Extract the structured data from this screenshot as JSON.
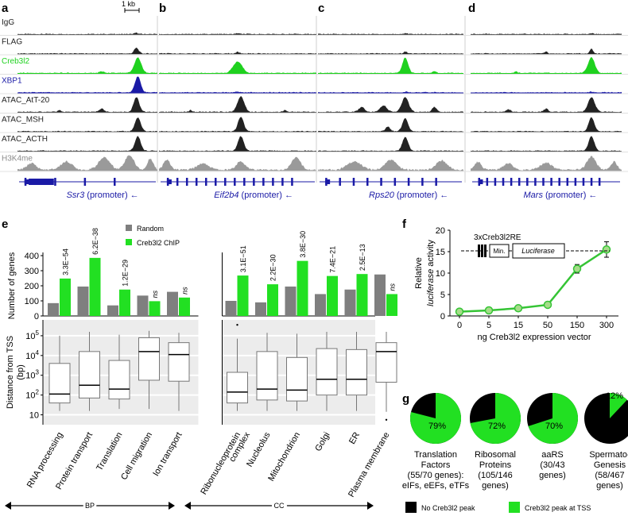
{
  "panel_letters": [
    "a",
    "b",
    "c",
    "d",
    "e",
    "f",
    "g"
  ],
  "genome": {
    "scale_label": "1 kb",
    "tracks": [
      "IgG",
      "FLAG",
      "Creb3l2",
      "XBP1",
      "ATAC_AtT-20",
      "ATAC_MSH",
      "ATAC_ACTH",
      "H3K4me"
    ],
    "track_colors": [
      "#222222",
      "#222222",
      "#1fd11f",
      "#1a1aa6",
      "#222222",
      "#222222",
      "#222222",
      "#9a9a9a"
    ],
    "genes": [
      {
        "name": "Ssr3",
        "suffix": " (promoter) ←"
      },
      {
        "name": "Eif2b4",
        "suffix": " (promoter) ←"
      },
      {
        "name": "Rps20",
        "suffix": " (promoter) ←"
      },
      {
        "name": "Mars",
        "suffix": " (promoter) ←"
      }
    ]
  },
  "chart_data": [
    {
      "type": "bar",
      "panel": "e",
      "categories": [
        "RNA processing",
        "Protein transport",
        "Translation",
        "Cell migration",
        "Ion transport",
        "Ribonucleoprotein complex",
        "Nucleolus",
        "Mitochondrion",
        "Golgi",
        "ER",
        "Plasma membrane"
      ],
      "series": [
        {
          "name": "Random",
          "values": [
            85,
            195,
            70,
            135,
            160,
            100,
            90,
            195,
            145,
            175,
            275
          ],
          "color": "#7f7f7f"
        },
        {
          "name": "Creb3l2 ChIP",
          "values": [
            248,
            385,
            175,
            98,
            122,
            268,
            210,
            365,
            265,
            278,
            145
          ],
          "color": "#22e022"
        }
      ],
      "pvalues": [
        "3.3E−54",
        "6.2E−38",
        "1.2E−29",
        "ns",
        "ns",
        "3.1E−51",
        "2.2E−30",
        "3.8E−30",
        "7.4E−21",
        "2.5E−13",
        "ns"
      ],
      "ylabel": "Number of genes",
      "ylim": [
        0,
        400
      ],
      "yticks": [
        "0",
        "100",
        "200",
        "300",
        "400"
      ],
      "groups": [
        {
          "name": "BP",
          "count": 5
        },
        {
          "name": "CC",
          "count": 6
        }
      ]
    },
    {
      "type": "box",
      "panel": "e",
      "categories": [
        "RNA processing",
        "Protein transport",
        "Translation",
        "Cell migration",
        "Ion transport",
        "Ribonucleoprotein complex",
        "Nucleolus",
        "Mitochondrion",
        "Golgi",
        "ER",
        "Plasma membrane"
      ],
      "ylabel": "Distance from TSS (bp)",
      "scale": "log",
      "yticks": [
        "10",
        "10^2",
        "10^3",
        "10^4",
        "10^5"
      ],
      "boxes": [
        {
          "low": 1.2,
          "q1": 1.6,
          "med": 2.05,
          "q3": 3.6,
          "high": 5.0
        },
        {
          "low": 1.2,
          "q1": 1.85,
          "med": 2.5,
          "q3": 4.2,
          "high": 5.2
        },
        {
          "low": 1.3,
          "q1": 1.8,
          "med": 2.3,
          "q3": 3.75,
          "high": 5.05
        },
        {
          "low": 1.3,
          "q1": 2.75,
          "med": 4.2,
          "q3": 4.9,
          "high": 5.25
        },
        {
          "low": 1.2,
          "q1": 2.7,
          "med": 4.05,
          "q3": 4.65,
          "high": 5.15
        },
        {
          "low": 1.2,
          "q1": 1.6,
          "med": 2.15,
          "q3": 3.15,
          "high": 4.85,
          "outlier_high": 5.55
        },
        {
          "low": 1.2,
          "q1": 1.75,
          "med": 2.3,
          "q3": 4.2,
          "high": 5.15
        },
        {
          "low": 1.2,
          "q1": 1.7,
          "med": 2.25,
          "q3": 3.9,
          "high": 5.1
        },
        {
          "low": 1.2,
          "q1": 2.0,
          "med": 2.8,
          "q3": 4.35,
          "high": 5.2
        },
        {
          "low": 1.2,
          "q1": 2.0,
          "med": 2.8,
          "q3": 4.3,
          "high": 5.2
        },
        {
          "low": 1.15,
          "q1": 2.65,
          "med": 4.2,
          "q3": 4.65,
          "high": 5.2,
          "outlier_low": 0.75
        }
      ]
    },
    {
      "type": "line",
      "panel": "f",
      "x": [
        "0",
        "5",
        "15",
        "50",
        "150",
        "300"
      ],
      "y": [
        1.0,
        1.3,
        1.8,
        2.6,
        11.0,
        15.5
      ],
      "err": [
        0.3,
        0.3,
        0.3,
        0.3,
        1.0,
        1.8
      ],
      "xlabel": "ng Creb3l2 expression vector",
      "ylabel": "Relative luciferase activity",
      "ylim": [
        0,
        20
      ],
      "yticks": [
        "0",
        "5",
        "10",
        "15",
        "20"
      ],
      "color": "#35c435",
      "construct": {
        "label": "3xCreb3l2RE",
        "min": "Min.",
        "reporter": "Luciferase"
      }
    },
    {
      "type": "pie",
      "panel": "g",
      "slices_label_colors": {
        "no": "#000000",
        "yes": "#22e022"
      },
      "pies": [
        {
          "fraction": 0.79,
          "label": "79%",
          "caption": [
            "Translation",
            "Factors",
            "(55/70 genes):",
            "eIFs, eEFs, eTFs"
          ]
        },
        {
          "fraction": 0.72,
          "label": "72%",
          "caption": [
            "Ribosomal",
            "Proteins",
            "(105/146",
            "genes)"
          ]
        },
        {
          "fraction": 0.7,
          "label": "70%",
          "caption": [
            "aaRS",
            "(30/43",
            "genes)"
          ]
        },
        {
          "fraction": 0.12,
          "label": "12%",
          "caption": [
            "Spermato-",
            "Genesis",
            "(58/467",
            "genes)"
          ]
        }
      ],
      "legend": [
        {
          "label": "No Creb3l2 peak",
          "color": "#000000"
        },
        {
          "label": "Creb3l2 peak at TSS",
          "color": "#22e022"
        }
      ]
    }
  ]
}
